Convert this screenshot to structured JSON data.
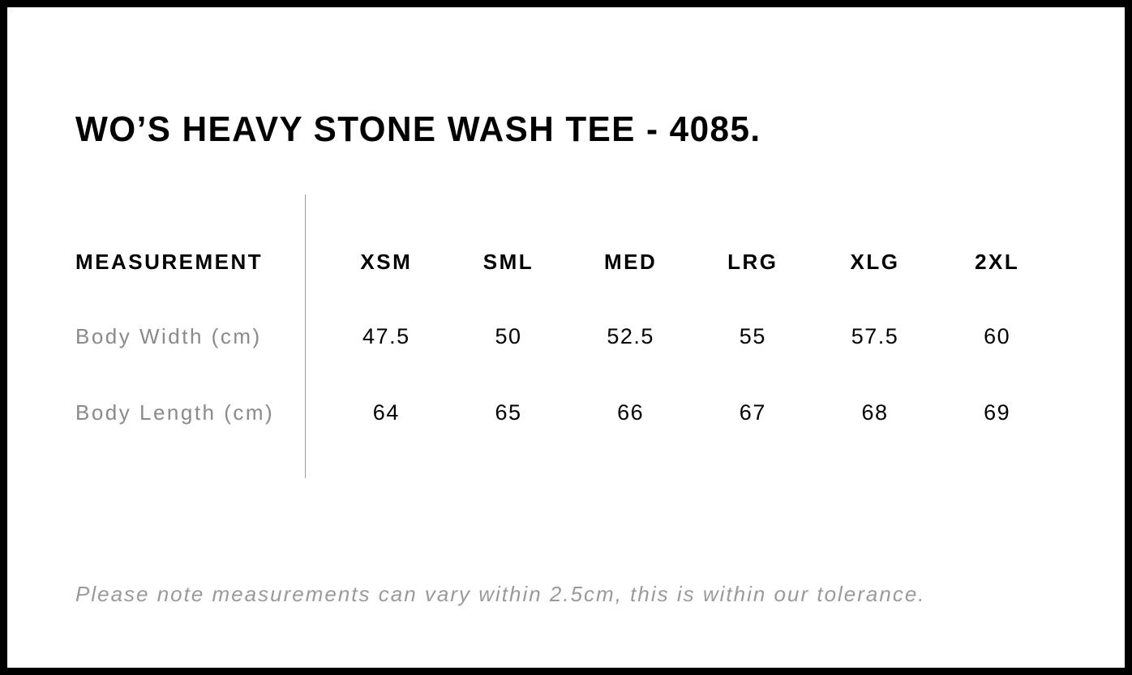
{
  "page": {
    "title": "WO’S HEAVY STONE WASH TEE - 4085.",
    "footnote": "Please note measurements can vary within 2.5cm, this is within our tolerance."
  },
  "colors": {
    "text_black": "#000000",
    "label_gray": "#8a8a8a",
    "note_gray": "#9a9a9a",
    "divider_gray": "#9c9c9c",
    "frame_black": "#000000"
  },
  "table": {
    "header": [
      "MEASUREMENT",
      "XSM",
      "SML",
      "MED",
      "LRG",
      "XLG",
      "2XL"
    ],
    "rows": [
      {
        "label": "Body Width (cm)",
        "values": [
          "47.5",
          "50",
          "52.5",
          "55",
          "57.5",
          "60"
        ]
      },
      {
        "label": "Body Length (cm)",
        "values": [
          "64",
          "65",
          "66",
          "67",
          "68",
          "69"
        ]
      }
    ]
  },
  "chart_data": {
    "type": "table",
    "title": "WO’S HEAVY STONE WASH TEE - 4085.",
    "columns": [
      "MEASUREMENT",
      "XSM",
      "SML",
      "MED",
      "LRG",
      "XLG",
      "2XL"
    ],
    "rows": [
      {
        "label": "Body Width (cm)",
        "values": [
          47.5,
          50,
          52.5,
          55,
          57.5,
          60
        ]
      },
      {
        "label": "Body Length (cm)",
        "values": [
          64,
          65,
          66,
          67,
          68,
          69
        ]
      }
    ],
    "footnote": "Please note measurements can vary within 2.5cm, this is within our tolerance."
  }
}
